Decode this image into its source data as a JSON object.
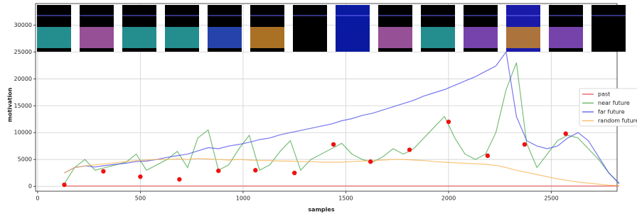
{
  "chart_data": {
    "type": "line",
    "xlabel": "samples",
    "ylabel": "motivation",
    "xlim": [
      -10,
      2820
    ],
    "ylim": [
      -900,
      34000
    ],
    "xticks": [
      0,
      500,
      1000,
      1500,
      2000,
      2500
    ],
    "yticks": [
      0,
      5000,
      10000,
      15000,
      20000,
      25000,
      30000
    ],
    "grid": true,
    "legend": "right",
    "x": [
      130,
      180,
      230,
      280,
      330,
      380,
      430,
      480,
      530,
      580,
      630,
      680,
      730,
      780,
      830,
      880,
      930,
      980,
      1030,
      1080,
      1130,
      1180,
      1230,
      1280,
      1330,
      1380,
      1430,
      1480,
      1530,
      1580,
      1630,
      1680,
      1730,
      1780,
      1830,
      1880,
      1930,
      1980,
      2030,
      2080,
      2130,
      2180,
      2230,
      2280,
      2330,
      2380,
      2430,
      2480,
      2530,
      2580,
      2630,
      2680,
      2730,
      2780,
      2830
    ],
    "series": [
      {
        "name": "past",
        "color": "#e8474a",
        "values": [
          80,
          80,
          80,
          80,
          80,
          80,
          80,
          80,
          80,
          80,
          80,
          80,
          80,
          80,
          80,
          80,
          80,
          80,
          80,
          80,
          80,
          80,
          80,
          80,
          80,
          80,
          80,
          80,
          80,
          80,
          80,
          80,
          80,
          80,
          80,
          80,
          80,
          80,
          80,
          80,
          80,
          80,
          80,
          80,
          80,
          80,
          80,
          80,
          80,
          80,
          80,
          80,
          80,
          80,
          80
        ]
      },
      {
        "name": "near future",
        "color": "#4ca84c",
        "values": [
          500,
          3500,
          5000,
          3000,
          3500,
          4000,
          4500,
          6000,
          3000,
          4000,
          5000,
          6500,
          3500,
          9000,
          10500,
          3000,
          4000,
          7000,
          9500,
          3000,
          4000,
          6500,
          8500,
          3000,
          5000,
          6000,
          7000,
          8000,
          6000,
          5000,
          4500,
          5500,
          7000,
          6000,
          7000,
          9000,
          11000,
          13000,
          9000,
          6000,
          5000,
          6000,
          10000,
          18000,
          23000,
          8000,
          3500,
          6000,
          8500,
          9500,
          9000,
          7000,
          5000,
          2500,
          600
        ]
      },
      {
        "name": "far future",
        "color": "#4a4ae8",
        "values": [
          2500,
          3500,
          3800,
          3600,
          3900,
          4100,
          4300,
          4600,
          4700,
          5000,
          5400,
          5700,
          6000,
          6600,
          7200,
          7000,
          7500,
          7800,
          8200,
          8700,
          9000,
          9600,
          10000,
          10400,
          10800,
          11200,
          11600,
          12200,
          12600,
          13200,
          13600,
          14200,
          14800,
          15400,
          16000,
          16800,
          17400,
          18000,
          18800,
          19600,
          20400,
          21400,
          22400,
          25000,
          13000,
          8500,
          7500,
          7000,
          7500,
          9000,
          10000,
          8500,
          5500,
          2500,
          500
        ]
      },
      {
        "name": "random future",
        "color": "#f7b04a",
        "values": [
          2500,
          3500,
          3800,
          4000,
          4200,
          4400,
          4600,
          4800,
          4900,
          5000,
          5000,
          5100,
          5000,
          5200,
          5100,
          5000,
          4900,
          5000,
          4900,
          4800,
          4800,
          4700,
          4700,
          4600,
          4600,
          4500,
          4500,
          4500,
          4600,
          4700,
          4800,
          4900,
          5000,
          5000,
          4900,
          4800,
          4600,
          4500,
          4400,
          4300,
          4200,
          4100,
          3900,
          3500,
          3000,
          2600,
          2200,
          1800,
          1400,
          1100,
          800,
          600,
          400,
          250,
          150
        ]
      }
    ],
    "markers": {
      "color": "#ee1111",
      "x": [
        130,
        320,
        500,
        690,
        880,
        1060,
        1250,
        1440,
        1620,
        1810,
        2000,
        2190,
        2370,
        2570
      ],
      "y": [
        300,
        2800,
        1800,
        1300,
        2900,
        3000,
        2500,
        7800,
        4600,
        6800,
        12000,
        5700,
        7800,
        9800
      ]
    }
  }
}
